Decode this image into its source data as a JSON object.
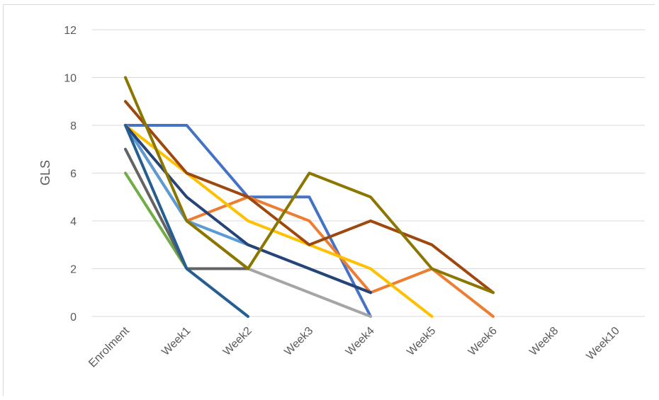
{
  "chart_data": {
    "type": "line",
    "title": "",
    "xlabel": "",
    "ylabel": "GLS",
    "ylim": [
      0,
      12
    ],
    "yticks": [
      "0",
      "2",
      "4",
      "6",
      "8",
      "10",
      "12"
    ],
    "categories": [
      "Enrolment",
      "Week1",
      "Week2",
      "Week3",
      "Week4",
      "Week5",
      "Week6",
      "Week8",
      "Week10"
    ],
    "grid": true,
    "legend": "none",
    "series": [
      {
        "color": "#4472c4",
        "values": [
          8,
          8,
          5,
          5,
          0,
          null,
          null,
          null,
          null
        ]
      },
      {
        "color": "#ed7d31",
        "values": [
          8,
          4,
          5,
          4,
          1,
          2,
          0,
          null,
          null
        ]
      },
      {
        "color": "#a5a5a5",
        "values": [
          8,
          4,
          2,
          1,
          0,
          null,
          null,
          null,
          null
        ]
      },
      {
        "color": "#ffc000",
        "values": [
          8,
          6,
          4,
          3,
          2,
          0,
          null,
          null,
          null
        ]
      },
      {
        "color": "#5b9bd5",
        "values": [
          8,
          4,
          3,
          2,
          1,
          null,
          null,
          null,
          null
        ]
      },
      {
        "color": "#70ad47",
        "values": [
          6,
          2,
          null,
          null,
          null,
          null,
          null,
          null,
          null
        ]
      },
      {
        "color": "#264478",
        "values": [
          8,
          5,
          3,
          2,
          1,
          null,
          null,
          null,
          null
        ]
      },
      {
        "color": "#636363",
        "values": [
          7,
          2,
          2,
          null,
          null,
          null,
          null,
          null,
          null
        ]
      },
      {
        "color": "#255e91",
        "values": [
          8,
          2,
          0,
          null,
          null,
          null,
          null,
          null,
          null
        ]
      },
      {
        "color": "#9e480e",
        "values": [
          9,
          6,
          5,
          3,
          4,
          3,
          1,
          null,
          null
        ]
      },
      {
        "color": "#8b7700",
        "values": [
          10,
          4,
          2,
          6,
          5,
          2,
          1,
          null,
          null
        ]
      }
    ]
  }
}
